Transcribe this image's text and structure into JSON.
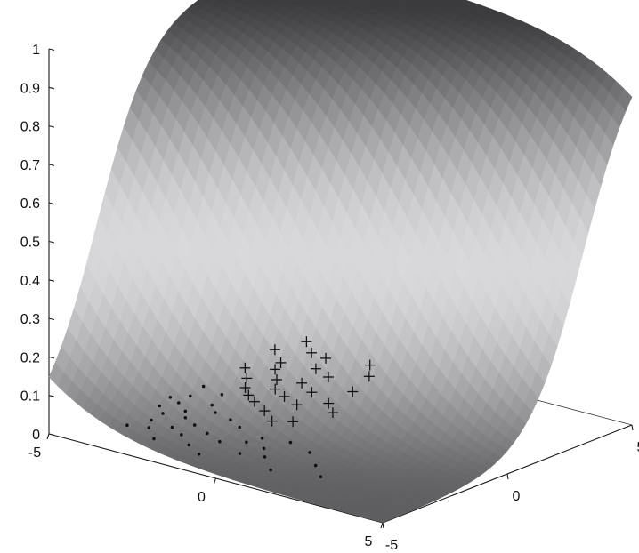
{
  "chart_data": {
    "type": "surface-3d-with-scatter",
    "surface": {
      "function": "logistic sigmoid probability over two inputs",
      "zlim": [
        0,
        1
      ],
      "xlim": [
        -5,
        5
      ],
      "ylim": [
        -5,
        5
      ]
    },
    "z_ticks": [
      "1",
      "0.9",
      "0.8",
      "0.7",
      "0.6",
      "0.5",
      "0.4",
      "0.3",
      "0.2",
      "0.1",
      "0"
    ],
    "left_axis_ticks": [
      "-5",
      "0",
      "5"
    ],
    "right_axis_ticks": [
      "-5",
      "0",
      "5"
    ],
    "series": [
      {
        "marker": "dot",
        "points": [
          [
            -1.8,
            -3.2
          ],
          [
            -1.2,
            -2.6
          ],
          [
            -0.6,
            -3.6
          ],
          [
            0.1,
            -2.9
          ],
          [
            0.7,
            -3.1
          ],
          [
            1.1,
            -2.3
          ],
          [
            1.6,
            -2.7
          ],
          [
            2.0,
            -3.4
          ],
          [
            2.2,
            -2.4
          ],
          [
            2.6,
            -2.9
          ],
          [
            2.9,
            -3.6
          ],
          [
            3.1,
            -2.6
          ],
          [
            3.5,
            -3.0
          ],
          [
            3.8,
            -2.5
          ],
          [
            4.0,
            -3.2
          ],
          [
            1.4,
            -3.8
          ],
          [
            0.5,
            -2.4
          ],
          [
            2.8,
            -2.1
          ],
          [
            3.3,
            -1.8
          ],
          [
            3.6,
            -1.4
          ],
          [
            3.9,
            -1.9
          ],
          [
            4.1,
            -1.0
          ],
          [
            4.3,
            -1.5
          ],
          [
            -0.5,
            -1.9
          ],
          [
            0.3,
            -1.6
          ],
          [
            1.0,
            -1.8
          ],
          [
            1.9,
            -1.5
          ],
          [
            2.4,
            -1.2
          ],
          [
            3.0,
            -1.0
          ],
          [
            3.4,
            -0.6
          ],
          [
            4.2,
            -0.4
          ],
          [
            4.5,
            -0.8
          ],
          [
            3.7,
            0.2
          ],
          [
            4.4,
            0.4
          ]
        ]
      },
      {
        "marker": "plus",
        "points": [
          [
            1.2,
            -0.3
          ],
          [
            1.6,
            -0.6
          ],
          [
            2.2,
            -0.1
          ],
          [
            2.8,
            0.3
          ],
          [
            3.2,
            0.6
          ],
          [
            1.9,
            0.8
          ],
          [
            2.5,
            1.1
          ],
          [
            3.0,
            1.4
          ],
          [
            3.6,
            1.0
          ],
          [
            4.0,
            1.6
          ],
          [
            2.2,
            1.8
          ],
          [
            2.8,
            2.2
          ],
          [
            3.4,
            2.0
          ],
          [
            3.9,
            2.6
          ],
          [
            1.5,
            2.5
          ],
          [
            2.6,
            3.0
          ],
          [
            3.2,
            3.3
          ],
          [
            4.1,
            3.1
          ],
          [
            1.9,
            3.7
          ],
          [
            4.5,
            2.2
          ],
          [
            4.8,
            3.8
          ],
          [
            4.0,
            4.2
          ],
          [
            2.4,
            4.4
          ],
          [
            3.5,
            4.1
          ],
          [
            4.6,
            4.8
          ],
          [
            1.4,
            1.4
          ],
          [
            0.9,
            0.9
          ]
        ]
      }
    ]
  }
}
